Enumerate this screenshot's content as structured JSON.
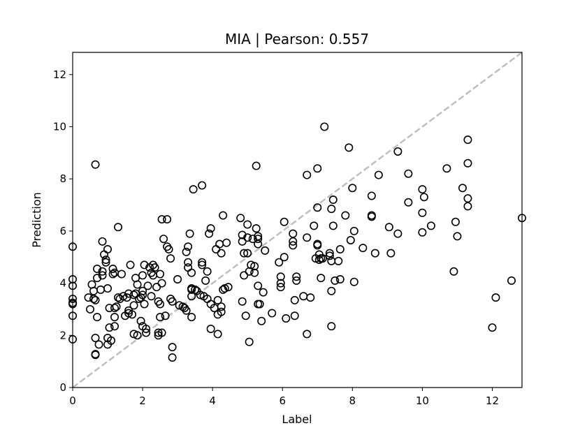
{
  "chart_data": {
    "type": "scatter",
    "title": "MIA  |  Pearson: 0.557",
    "xlabel": "Label",
    "ylabel": "Prediction",
    "xlim": [
      0,
      12.85
    ],
    "ylim": [
      0,
      12.85
    ],
    "xticks": [
      0,
      2,
      4,
      6,
      8,
      10,
      12
    ],
    "yticks": [
      0,
      2,
      4,
      6,
      8,
      10,
      12
    ],
    "grid": false,
    "identity_line": true,
    "colors": {
      "marker": "#000000",
      "identity": "#bfbfbf"
    },
    "points": [
      [
        0.0,
        5.4
      ],
      [
        0.0,
        4.15
      ],
      [
        0.0,
        3.9
      ],
      [
        0.0,
        3.4
      ],
      [
        0.0,
        3.25
      ],
      [
        0.0,
        3.2
      ],
      [
        0.0,
        2.75
      ],
      [
        0.0,
        1.85
      ],
      [
        0.45,
        3.45
      ],
      [
        0.5,
        3.0
      ],
      [
        0.55,
        3.95
      ],
      [
        0.6,
        3.7
      ],
      [
        0.6,
        3.4
      ],
      [
        0.65,
        3.35
      ],
      [
        0.65,
        1.9
      ],
      [
        0.65,
        1.28
      ],
      [
        0.65,
        1.25
      ],
      [
        0.7,
        2.7
      ],
      [
        0.7,
        4.2
      ],
      [
        0.7,
        4.55
      ],
      [
        0.65,
        8.55
      ],
      [
        0.75,
        1.65
      ],
      [
        0.8,
        3.75
      ],
      [
        0.85,
        4.3
      ],
      [
        0.85,
        4.45
      ],
      [
        0.85,
        5.6
      ],
      [
        0.9,
        5.1
      ],
      [
        0.95,
        4.8
      ],
      [
        0.95,
        4.9
      ],
      [
        1.0,
        5.3
      ],
      [
        1.0,
        3.8
      ],
      [
        1.0,
        1.65
      ],
      [
        1.0,
        1.9
      ],
      [
        1.05,
        2.3
      ],
      [
        1.05,
        3.05
      ],
      [
        1.1,
        1.8
      ],
      [
        1.15,
        4.55
      ],
      [
        1.15,
        4.35
      ],
      [
        1.2,
        4.4
      ],
      [
        1.2,
        2.35
      ],
      [
        1.2,
        2.7
      ],
      [
        1.2,
        3.05
      ],
      [
        1.25,
        3.1
      ],
      [
        1.3,
        6.15
      ],
      [
        1.3,
        3.45
      ],
      [
        1.35,
        3.4
      ],
      [
        1.4,
        4.35
      ],
      [
        1.45,
        3.5
      ],
      [
        1.5,
        2.75
      ],
      [
        1.55,
        3.45
      ],
      [
        1.6,
        2.95
      ],
      [
        1.6,
        3.6
      ],
      [
        1.6,
        2.85
      ],
      [
        1.65,
        4.7
      ],
      [
        1.7,
        2.8
      ],
      [
        1.75,
        3.15
      ],
      [
        1.75,
        3.55
      ],
      [
        1.75,
        2.05
      ],
      [
        1.8,
        4.2
      ],
      [
        1.8,
        3.6
      ],
      [
        1.85,
        3.95
      ],
      [
        1.85,
        2.0
      ],
      [
        1.9,
        3.4
      ],
      [
        1.95,
        2.55
      ],
      [
        1.95,
        3.45
      ],
      [
        2.0,
        4.3
      ],
      [
        2.0,
        3.7
      ],
      [
        2.0,
        3.55
      ],
      [
        2.0,
        2.35
      ],
      [
        2.05,
        4.7
      ],
      [
        2.05,
        3.2
      ],
      [
        2.1,
        2.25
      ],
      [
        2.1,
        2.1
      ],
      [
        2.15,
        3.9
      ],
      [
        2.2,
        4.6
      ],
      [
        2.25,
        4.4
      ],
      [
        2.25,
        3.5
      ],
      [
        2.3,
        4.7
      ],
      [
        2.3,
        4.3
      ],
      [
        2.35,
        4.6
      ],
      [
        2.4,
        3.85
      ],
      [
        2.45,
        3.3
      ],
      [
        2.45,
        2.1
      ],
      [
        2.45,
        2.0
      ],
      [
        2.5,
        2.7
      ],
      [
        2.5,
        3.2
      ],
      [
        2.5,
        4.35
      ],
      [
        2.55,
        6.45
      ],
      [
        2.55,
        2.1
      ],
      [
        2.55,
        4.0
      ],
      [
        2.6,
        5.7
      ],
      [
        2.65,
        2.75
      ],
      [
        2.7,
        6.45
      ],
      [
        2.7,
        5.4
      ],
      [
        2.75,
        5.3
      ],
      [
        2.8,
        4.95
      ],
      [
        2.8,
        3.4
      ],
      [
        2.85,
        3.3
      ],
      [
        2.85,
        1.15
      ],
      [
        2.85,
        1.55
      ],
      [
        3.0,
        4.15
      ],
      [
        3.05,
        3.15
      ],
      [
        3.15,
        3.1
      ],
      [
        3.2,
        3.05
      ],
      [
        3.25,
        2.95
      ],
      [
        3.25,
        5.2
      ],
      [
        3.3,
        4.6
      ],
      [
        3.3,
        4.8
      ],
      [
        3.3,
        5.4
      ],
      [
        3.35,
        5.9
      ],
      [
        3.4,
        4.4
      ],
      [
        3.4,
        3.8
      ],
      [
        3.4,
        3.75
      ],
      [
        3.4,
        3.5
      ],
      [
        3.4,
        2.7
      ],
      [
        3.45,
        7.6
      ],
      [
        3.5,
        3.75
      ],
      [
        3.55,
        3.7
      ],
      [
        3.65,
        3.55
      ],
      [
        3.7,
        4.8
      ],
      [
        3.7,
        4.7
      ],
      [
        3.7,
        7.75
      ],
      [
        3.75,
        3.5
      ],
      [
        3.8,
        4.1
      ],
      [
        3.85,
        4.45
      ],
      [
        3.85,
        3.4
      ],
      [
        3.9,
        5.9
      ],
      [
        3.95,
        6.1
      ],
      [
        3.95,
        2.25
      ],
      [
        3.95,
        3.2
      ],
      [
        4.05,
        3.05
      ],
      [
        4.1,
        5.3
      ],
      [
        4.15,
        3.35
      ],
      [
        4.15,
        2.05
      ],
      [
        4.15,
        2.8
      ],
      [
        4.2,
        5.5
      ],
      [
        4.25,
        3.1
      ],
      [
        4.25,
        2.9
      ],
      [
        4.3,
        6.6
      ],
      [
        4.3,
        3.75
      ],
      [
        4.35,
        3.8
      ],
      [
        4.4,
        5.55
      ],
      [
        4.45,
        3.85
      ],
      [
        4.25,
        5.15
      ],
      [
        4.8,
        6.5
      ],
      [
        4.85,
        5.85
      ],
      [
        4.85,
        5.6
      ],
      [
        4.85,
        3.3
      ],
      [
        4.9,
        5.15
      ],
      [
        4.9,
        4.3
      ],
      [
        4.95,
        2.75
      ],
      [
        5.0,
        6.25
      ],
      [
        5.0,
        5.75
      ],
      [
        5.0,
        5.15
      ],
      [
        5.05,
        4.45
      ],
      [
        5.05,
        1.75
      ],
      [
        5.1,
        4.7
      ],
      [
        5.15,
        5.7
      ],
      [
        5.2,
        4.65
      ],
      [
        5.2,
        4.4
      ],
      [
        5.25,
        6.1
      ],
      [
        5.25,
        8.5
      ],
      [
        5.3,
        5.7
      ],
      [
        5.3,
        5.8
      ],
      [
        5.3,
        5.5
      ],
      [
        5.3,
        3.9
      ],
      [
        5.3,
        3.2
      ],
      [
        5.35,
        3.2
      ],
      [
        5.4,
        2.55
      ],
      [
        5.45,
        3.65
      ],
      [
        5.5,
        5.25
      ],
      [
        5.7,
        2.85
      ],
      [
        5.9,
        4.8
      ],
      [
        5.95,
        4.25
      ],
      [
        5.95,
        3.85
      ],
      [
        5.95,
        4.0
      ],
      [
        6.05,
        6.35
      ],
      [
        6.05,
        5.0
      ],
      [
        6.1,
        2.65
      ],
      [
        6.3,
        5.45
      ],
      [
        6.3,
        5.6
      ],
      [
        6.3,
        5.9
      ],
      [
        6.35,
        2.75
      ],
      [
        6.35,
        3.35
      ],
      [
        6.4,
        4.1
      ],
      [
        6.4,
        4.25
      ],
      [
        6.6,
        3.5
      ],
      [
        6.7,
        8.15
      ],
      [
        6.7,
        5.75
      ],
      [
        6.7,
        2.05
      ],
      [
        6.8,
        3.45
      ],
      [
        6.9,
        6.2
      ],
      [
        6.95,
        4.95
      ],
      [
        7.0,
        5.5
      ],
      [
        7.0,
        5.45
      ],
      [
        7.0,
        6.9
      ],
      [
        7.0,
        8.4
      ],
      [
        7.05,
        5.1
      ],
      [
        7.05,
        4.9
      ],
      [
        7.1,
        4.95
      ],
      [
        7.15,
        4.95
      ],
      [
        7.1,
        4.2
      ],
      [
        7.2,
        10.0
      ],
      [
        7.35,
        5.15
      ],
      [
        7.35,
        5.05
      ],
      [
        7.4,
        3.7
      ],
      [
        7.4,
        4.85
      ],
      [
        7.4,
        6.85
      ],
      [
        7.4,
        2.35
      ],
      [
        7.45,
        7.2
      ],
      [
        7.45,
        6.2
      ],
      [
        7.5,
        4.1
      ],
      [
        7.6,
        4.85
      ],
      [
        7.65,
        4.15
      ],
      [
        7.65,
        5.3
      ],
      [
        7.8,
        6.6
      ],
      [
        7.9,
        9.2
      ],
      [
        7.95,
        5.65
      ],
      [
        8.0,
        7.65
      ],
      [
        8.05,
        6.0
      ],
      [
        8.05,
        4.05
      ],
      [
        8.3,
        5.35
      ],
      [
        8.55,
        6.55
      ],
      [
        8.55,
        6.6
      ],
      [
        8.55,
        7.35
      ],
      [
        8.65,
        5.15
      ],
      [
        8.75,
        8.15
      ],
      [
        9.05,
        6.15
      ],
      [
        9.1,
        5.15
      ],
      [
        9.3,
        5.9
      ],
      [
        9.3,
        9.05
      ],
      [
        9.6,
        7.1
      ],
      [
        9.6,
        8.2
      ],
      [
        10.0,
        7.6
      ],
      [
        10.0,
        6.7
      ],
      [
        10.05,
        7.3
      ],
      [
        10.0,
        5.95
      ],
      [
        10.25,
        6.2
      ],
      [
        10.7,
        8.4
      ],
      [
        10.9,
        4.45
      ],
      [
        10.95,
        6.35
      ],
      [
        11.0,
        5.8
      ],
      [
        11.15,
        7.65
      ],
      [
        11.3,
        9.5
      ],
      [
        11.3,
        8.6
      ],
      [
        11.3,
        7.25
      ],
      [
        11.3,
        6.95
      ],
      [
        12.0,
        2.3
      ],
      [
        12.1,
        3.45
      ],
      [
        12.55,
        4.1
      ],
      [
        12.85,
        6.5
      ]
    ]
  }
}
